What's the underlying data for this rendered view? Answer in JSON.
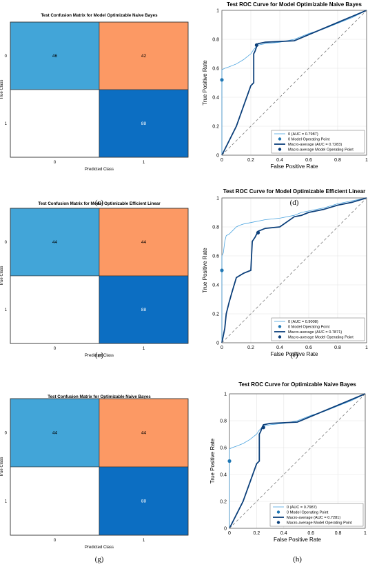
{
  "panels": [
    {
      "label": "(c)",
      "chart_data": {
        "type": "heatmap",
        "title": "Test Confusion Matrix for Model Optimizable Naive Bayes",
        "xlabel": "Predicted Class",
        "ylabel": "True Class",
        "x_categories": [
          "0",
          "1"
        ],
        "y_categories": [
          "0",
          "1"
        ],
        "cells": [
          {
            "row": 0,
            "col": 0,
            "value": "46",
            "color": "#42a5d8",
            "text_color": "#000000"
          },
          {
            "row": 0,
            "col": 1,
            "value": "42",
            "color": "#fc9964",
            "text_color": "#000000"
          },
          {
            "row": 1,
            "col": 0,
            "value": "",
            "color": "#ffffff",
            "text_color": "#000000"
          },
          {
            "row": 1,
            "col": 1,
            "value": "88",
            "color": "#0c6ec2",
            "text_color": "#ffffff"
          }
        ]
      }
    },
    {
      "label": "(d)",
      "chart_data": {
        "type": "line",
        "title": "Test ROC Curve for Model Optimizable Naive Bayes",
        "xlabel": "False Positive Rate",
        "ylabel": "True Positive Rate",
        "xlim": [
          0,
          1
        ],
        "ylim": [
          0,
          1
        ],
        "xticks": [
          "0",
          "0.2",
          "0.4",
          "0.6",
          "0.8",
          "1"
        ],
        "yticks": [
          "0",
          "0.2",
          "0.4",
          "0.6",
          "0.8",
          "1"
        ],
        "grid": true,
        "legend": [
          "0 (AUC = 0.7987)",
          "0 Model Operating Point",
          "Macro-average (AUC = 0.7283)",
          "Macro-average Model Operating Point"
        ],
        "series": [
          {
            "name": "0 (AUC = 0.7987)",
            "style": "thin",
            "color": "#4aa3df",
            "points": [
              [
                0,
                0
              ],
              [
                0,
                0.52
              ],
              [
                0,
                0.58
              ],
              [
                0,
                0.59
              ],
              [
                0.02,
                0.6
              ],
              [
                0.05,
                0.61
              ],
              [
                0.1,
                0.63
              ],
              [
                0.15,
                0.66
              ],
              [
                0.2,
                0.7
              ],
              [
                0.22,
                0.73
              ],
              [
                0.25,
                0.76
              ],
              [
                0.3,
                0.77
              ],
              [
                0.4,
                0.78
              ],
              [
                0.5,
                0.8
              ],
              [
                0.6,
                0.84
              ],
              [
                0.7,
                0.87
              ],
              [
                0.8,
                0.91
              ],
              [
                0.9,
                0.95
              ],
              [
                1,
                1
              ]
            ]
          },
          {
            "name": "Macro-average (AUC = 0.7283)",
            "style": "thick",
            "color": "#0b3f7a",
            "points": [
              [
                0,
                0
              ],
              [
                0.1,
                0.2
              ],
              [
                0.2,
                0.48
              ],
              [
                0.22,
                0.5
              ],
              [
                0.22,
                0.7
              ],
              [
                0.23,
                0.72
              ],
              [
                0.24,
                0.75
              ],
              [
                0.25,
                0.77
              ],
              [
                0.3,
                0.78
              ],
              [
                0.5,
                0.79
              ],
              [
                1,
                1
              ]
            ]
          },
          {
            "name": "diagonal",
            "style": "dashed",
            "color": "#7a7a7a",
            "points": [
              [
                0,
                0
              ],
              [
                1,
                1
              ]
            ]
          }
        ],
        "markers": [
          {
            "name": "0 Model Operating Point",
            "x": 0.0,
            "y": 0.52,
            "color": "#1f77b4"
          },
          {
            "name": "Macro-average Model Operating Point",
            "x": 0.24,
            "y": 0.76,
            "color": "#0b3f7a"
          }
        ]
      }
    },
    {
      "label": "(e)",
      "chart_data": {
        "type": "heatmap",
        "title": "Test Confusion Matrix for Model Optimizable Efficient Linear",
        "xlabel": "Predicted Class",
        "ylabel": "True Class",
        "x_categories": [
          "0",
          "1"
        ],
        "y_categories": [
          "0",
          "1"
        ],
        "cells": [
          {
            "row": 0,
            "col": 0,
            "value": "44",
            "color": "#42a5d8",
            "text_color": "#000000"
          },
          {
            "row": 0,
            "col": 1,
            "value": "44",
            "color": "#fc9964",
            "text_color": "#000000"
          },
          {
            "row": 1,
            "col": 0,
            "value": "",
            "color": "#ffffff",
            "text_color": "#000000"
          },
          {
            "row": 1,
            "col": 1,
            "value": "88",
            "color": "#0c6ec2",
            "text_color": "#ffffff"
          }
        ]
      }
    },
    {
      "label": "(f)",
      "chart_data": {
        "type": "line",
        "title": "Test ROC Curve for Model Optimizable Efficient Linear",
        "xlabel": "False Positive Rate",
        "ylabel": "True Positive Rate",
        "xlim": [
          0,
          1
        ],
        "ylim": [
          0,
          1
        ],
        "xticks": [
          "0",
          "0.2",
          "0.4",
          "0.6",
          "0.8",
          "1"
        ],
        "yticks": [
          "0",
          "0.2",
          "0.4",
          "0.6",
          "0.8",
          "1"
        ],
        "grid": true,
        "legend": [
          "0 (AUC = 0.9008)",
          "0 Model Operating Point",
          "Macro-average (AUC = 0.7871)",
          "Macro-average Model Operating Point"
        ],
        "series": [
          {
            "name": "0 (AUC = 0.9008)",
            "style": "thin",
            "color": "#4aa3df",
            "points": [
              [
                0,
                0
              ],
              [
                0,
                0.5
              ],
              [
                0,
                0.6
              ],
              [
                0.01,
                0.62
              ],
              [
                0.02,
                0.7
              ],
              [
                0.03,
                0.74
              ],
              [
                0.05,
                0.75
              ],
              [
                0.07,
                0.77
              ],
              [
                0.1,
                0.8
              ],
              [
                0.12,
                0.81
              ],
              [
                0.15,
                0.82
              ],
              [
                0.2,
                0.83
              ],
              [
                0.3,
                0.85
              ],
              [
                0.4,
                0.86
              ],
              [
                0.5,
                0.88
              ],
              [
                0.55,
                0.9
              ],
              [
                0.6,
                0.91
              ],
              [
                0.7,
                0.93
              ],
              [
                0.8,
                0.96
              ],
              [
                0.9,
                0.98
              ],
              [
                1,
                1
              ]
            ]
          },
          {
            "name": "Macro-average (AUC = 0.7871)",
            "style": "thick",
            "color": "#0b3f7a",
            "points": [
              [
                0,
                0
              ],
              [
                0.01,
                0.05
              ],
              [
                0.02,
                0.1
              ],
              [
                0.03,
                0.2
              ],
              [
                0.05,
                0.28
              ],
              [
                0.07,
                0.35
              ],
              [
                0.1,
                0.45
              ],
              [
                0.15,
                0.48
              ],
              [
                0.2,
                0.5
              ],
              [
                0.21,
                0.7
              ],
              [
                0.23,
                0.73
              ],
              [
                0.25,
                0.77
              ],
              [
                0.3,
                0.79
              ],
              [
                0.4,
                0.8
              ],
              [
                0.5,
                0.87
              ],
              [
                0.55,
                0.88
              ],
              [
                0.6,
                0.9
              ],
              [
                0.7,
                0.92
              ],
              [
                0.8,
                0.95
              ],
              [
                0.9,
                0.97
              ],
              [
                1,
                1
              ]
            ]
          },
          {
            "name": "diagonal",
            "style": "dashed",
            "color": "#7a7a7a",
            "points": [
              [
                0,
                0
              ],
              [
                1,
                1
              ]
            ]
          }
        ],
        "markers": [
          {
            "name": "0 Model Operating Point",
            "x": 0.0,
            "y": 0.5,
            "color": "#1f77b4"
          },
          {
            "name": "Macro-average Model Operating Point",
            "x": 0.25,
            "y": 0.76,
            "color": "#0b3f7a"
          }
        ]
      }
    },
    {
      "label": "(g)",
      "chart_data": {
        "type": "heatmap",
        "title": "Test Confusion Matrix for Optimizable Naive Bayes",
        "xlabel": "Predicted Class",
        "ylabel": "True Class",
        "x_categories": [
          "0",
          "1"
        ],
        "y_categories": [
          "0",
          "1"
        ],
        "cells": [
          {
            "row": 0,
            "col": 0,
            "value": "44",
            "color": "#42a5d8",
            "text_color": "#000000"
          },
          {
            "row": 0,
            "col": 1,
            "value": "44",
            "color": "#fc9964",
            "text_color": "#000000"
          },
          {
            "row": 1,
            "col": 0,
            "value": "",
            "color": "#ffffff",
            "text_color": "#000000"
          },
          {
            "row": 1,
            "col": 1,
            "value": "88",
            "color": "#0c6ec2",
            "text_color": "#ffffff"
          }
        ]
      }
    },
    {
      "label": "(h)",
      "chart_data": {
        "type": "line",
        "title": "Test ROC Curve for Optimizable Naive Bayes",
        "xlabel": "False Positive Rate",
        "ylabel": "True Positive Rate",
        "xlim": [
          0,
          1
        ],
        "ylim": [
          0,
          1
        ],
        "xticks": [
          "0",
          "0.2",
          "0.4",
          "0.6",
          "0.8",
          "1"
        ],
        "yticks": [
          "0",
          "0.2",
          "0.4",
          "0.6",
          "0.8",
          "1"
        ],
        "grid": true,
        "legend": [
          "0 (AUC = 0.7987)",
          "0 Model Operating Point",
          "Macro-average (AUC = 0.7281)",
          "Macro-average Model Operating Point"
        ],
        "series": [
          {
            "name": "0 (AUC = 0.7987)",
            "style": "thin",
            "color": "#4aa3df",
            "points": [
              [
                0,
                0
              ],
              [
                0,
                0.5
              ],
              [
                0,
                0.58
              ],
              [
                0,
                0.59
              ],
              [
                0.02,
                0.6
              ],
              [
                0.05,
                0.61
              ],
              [
                0.1,
                0.63
              ],
              [
                0.15,
                0.66
              ],
              [
                0.2,
                0.7
              ],
              [
                0.22,
                0.73
              ],
              [
                0.25,
                0.76
              ],
              [
                0.3,
                0.77
              ],
              [
                0.4,
                0.78
              ],
              [
                0.5,
                0.8
              ],
              [
                0.6,
                0.84
              ],
              [
                0.7,
                0.87
              ],
              [
                0.8,
                0.91
              ],
              [
                0.9,
                0.95
              ],
              [
                1,
                1
              ]
            ]
          },
          {
            "name": "Macro-average (AUC = 0.7281)",
            "style": "thick",
            "color": "#0b3f7a",
            "points": [
              [
                0,
                0
              ],
              [
                0.1,
                0.2
              ],
              [
                0.2,
                0.48
              ],
              [
                0.22,
                0.5
              ],
              [
                0.22,
                0.7
              ],
              [
                0.23,
                0.72
              ],
              [
                0.24,
                0.75
              ],
              [
                0.25,
                0.77
              ],
              [
                0.3,
                0.78
              ],
              [
                0.5,
                0.79
              ],
              [
                1,
                1
              ]
            ]
          },
          {
            "name": "diagonal",
            "style": "dashed",
            "color": "#7a7a7a",
            "points": [
              [
                0,
                0
              ],
              [
                1,
                1
              ]
            ]
          }
        ],
        "markers": [
          {
            "name": "0 Model Operating Point",
            "x": 0.0,
            "y": 0.5,
            "color": "#1f77b4"
          },
          {
            "name": "Macro-average Model Operating Point",
            "x": 0.25,
            "y": 0.75,
            "color": "#0b3f7a"
          }
        ]
      }
    }
  ]
}
